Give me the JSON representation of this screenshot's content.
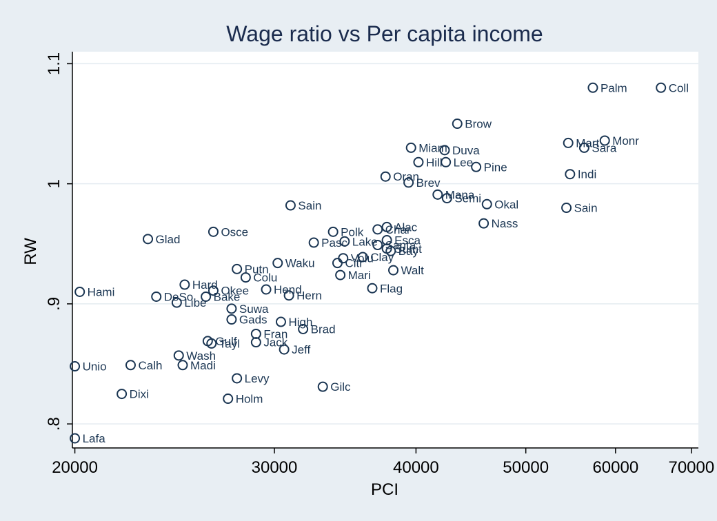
{
  "chart_data": {
    "type": "scatter",
    "title": "Wage ratio vs Per capita income",
    "xlabel": "PCI",
    "ylabel": "RW",
    "x_scale": "log",
    "xlim": [
      19900,
      71000
    ],
    "ylim": [
      0.78,
      1.11
    ],
    "x_ticks": [
      {
        "value": 20000,
        "label": "20000"
      },
      {
        "value": 30000,
        "label": "30000"
      },
      {
        "value": 40000,
        "label": "40000"
      },
      {
        "value": 50000,
        "label": "50000"
      },
      {
        "value": 60000,
        "label": "60000"
      },
      {
        "value": 70000,
        "label": "70000"
      }
    ],
    "y_ticks": [
      {
        "value": 0.8,
        "label": ".8"
      },
      {
        "value": 0.9,
        "label": ".9"
      },
      {
        "value": 1.0,
        "label": "1"
      },
      {
        "value": 1.1,
        "label": "1.1"
      }
    ],
    "grid": true,
    "points": [
      {
        "label": "Coll",
        "x": 65800,
        "y": 1.08
      },
      {
        "label": "Palm",
        "x": 57300,
        "y": 1.08
      },
      {
        "label": "Brow",
        "x": 43500,
        "y": 1.05
      },
      {
        "label": "Monr",
        "x": 58700,
        "y": 1.036
      },
      {
        "label": "Mart",
        "x": 54500,
        "y": 1.034
      },
      {
        "label": "Sara",
        "x": 56300,
        "y": 1.03
      },
      {
        "label": "Miam",
        "x": 39600,
        "y": 1.03
      },
      {
        "label": "Duva",
        "x": 42400,
        "y": 1.028
      },
      {
        "label": "Hill",
        "x": 40200,
        "y": 1.018
      },
      {
        "label": "Lee",
        "x": 42500,
        "y": 1.018
      },
      {
        "label": "Pine",
        "x": 45200,
        "y": 1.014
      },
      {
        "label": "Indi",
        "x": 54700,
        "y": 1.008
      },
      {
        "label": "Oran",
        "x": 37600,
        "y": 1.006
      },
      {
        "label": "Brev",
        "x": 39400,
        "y": 1.001
      },
      {
        "label": "Mana",
        "x": 41800,
        "y": 0.991
      },
      {
        "label": "Semi",
        "x": 42600,
        "y": 0.988
      },
      {
        "label": "Okal",
        "x": 46200,
        "y": 0.983
      },
      {
        "label": "Sain",
        "x": 31000,
        "y": 0.982
      },
      {
        "label": "Sain",
        "x": 54300,
        "y": 0.98
      },
      {
        "label": "Nass",
        "x": 45900,
        "y": 0.967
      },
      {
        "label": "Alac",
        "x": 37700,
        "y": 0.964
      },
      {
        "label": "Char",
        "x": 37000,
        "y": 0.962
      },
      {
        "label": "Polk",
        "x": 33800,
        "y": 0.96
      },
      {
        "label": "Osce",
        "x": 26500,
        "y": 0.96
      },
      {
        "label": "Glad",
        "x": 23200,
        "y": 0.954
      },
      {
        "label": "Esca",
        "x": 37700,
        "y": 0.953
      },
      {
        "label": "Lake",
        "x": 34600,
        "y": 0.952
      },
      {
        "label": "Pasc",
        "x": 32500,
        "y": 0.951
      },
      {
        "label": "Santa",
        "x": 37000,
        "y": 0.949
      },
      {
        "label": "Sumt",
        "x": 37700,
        "y": 0.946
      },
      {
        "label": "Bay",
        "x": 38000,
        "y": 0.944
      },
      {
        "label": "Clay",
        "x": 35900,
        "y": 0.939
      },
      {
        "label": "Volu",
        "x": 34500,
        "y": 0.938
      },
      {
        "label": "Citr",
        "x": 34100,
        "y": 0.934
      },
      {
        "label": "Waku",
        "x": 30200,
        "y": 0.934
      },
      {
        "label": "Putn",
        "x": 27800,
        "y": 0.929
      },
      {
        "label": "Walt",
        "x": 38200,
        "y": 0.928
      },
      {
        "label": "Mari",
        "x": 34300,
        "y": 0.924
      },
      {
        "label": "Colu",
        "x": 28300,
        "y": 0.922
      },
      {
        "label": "Hard",
        "x": 25000,
        "y": 0.916
      },
      {
        "label": "Flag",
        "x": 36600,
        "y": 0.913
      },
      {
        "label": "Hend",
        "x": 29500,
        "y": 0.912
      },
      {
        "label": "Okee",
        "x": 26500,
        "y": 0.911
      },
      {
        "label": "Hami",
        "x": 20200,
        "y": 0.91
      },
      {
        "label": "Hern",
        "x": 30900,
        "y": 0.907
      },
      {
        "label": "Bake",
        "x": 26100,
        "y": 0.906
      },
      {
        "label": "DeSo",
        "x": 23600,
        "y": 0.906
      },
      {
        "label": "Libe",
        "x": 24600,
        "y": 0.901
      },
      {
        "label": "Suwa",
        "x": 27500,
        "y": 0.896
      },
      {
        "label": "Gads",
        "x": 27500,
        "y": 0.887
      },
      {
        "label": "High",
        "x": 30400,
        "y": 0.885
      },
      {
        "label": "Brad",
        "x": 31800,
        "y": 0.879
      },
      {
        "label": "Fran",
        "x": 28900,
        "y": 0.875
      },
      {
        "label": "Gulf",
        "x": 26200,
        "y": 0.869
      },
      {
        "label": "Tayl",
        "x": 26400,
        "y": 0.867
      },
      {
        "label": "Jack",
        "x": 28900,
        "y": 0.868
      },
      {
        "label": "Jeff",
        "x": 30600,
        "y": 0.862
      },
      {
        "label": "Wash",
        "x": 24700,
        "y": 0.857
      },
      {
        "label": "Unio",
        "x": 20000,
        "y": 0.848
      },
      {
        "label": "Calh",
        "x": 22400,
        "y": 0.849
      },
      {
        "label": "Madi",
        "x": 24900,
        "y": 0.849
      },
      {
        "label": "Levy",
        "x": 27800,
        "y": 0.838
      },
      {
        "label": "Gilc",
        "x": 33100,
        "y": 0.831
      },
      {
        "label": "Dixi",
        "x": 22000,
        "y": 0.825
      },
      {
        "label": "Holm",
        "x": 27300,
        "y": 0.821
      },
      {
        "label": "Lafa",
        "x": 20000,
        "y": 0.788
      }
    ]
  }
}
